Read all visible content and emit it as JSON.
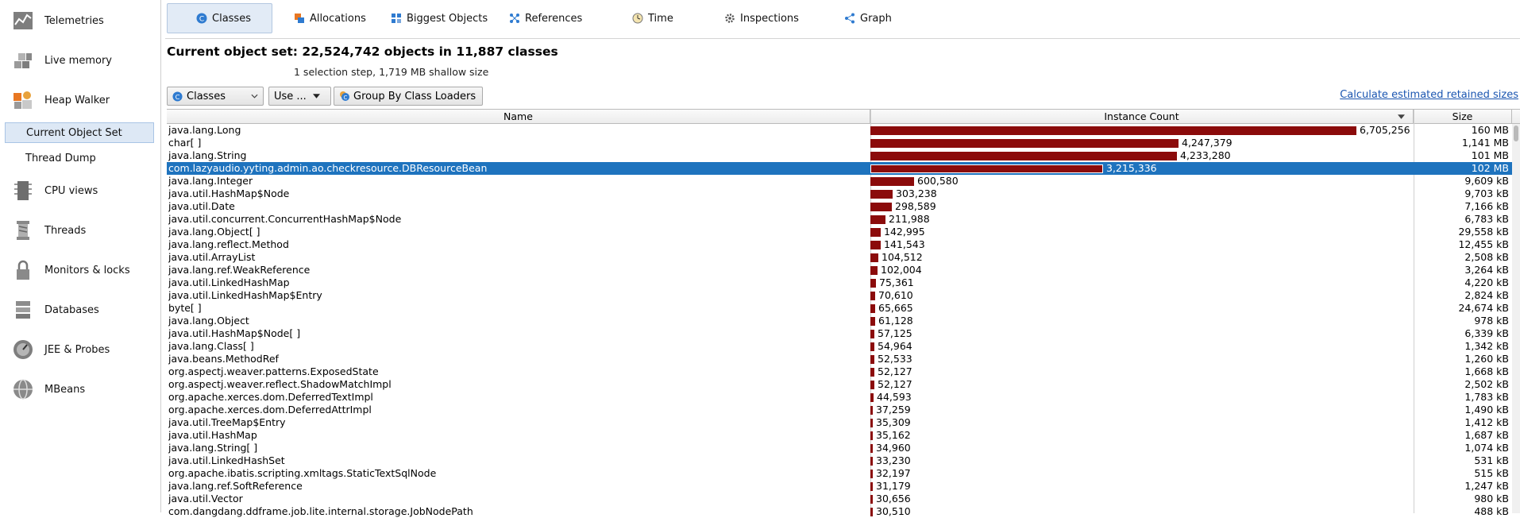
{
  "sidebar": {
    "items": [
      {
        "label": "Telemetries",
        "icon": "telemetries-icon"
      },
      {
        "label": "Live memory",
        "icon": "live-memory-icon"
      },
      {
        "label": "Heap Walker",
        "icon": "heap-walker-icon"
      },
      {
        "label": "CPU views",
        "icon": "cpu-views-icon"
      },
      {
        "label": "Threads",
        "icon": "threads-icon"
      },
      {
        "label": "Monitors & locks",
        "icon": "lock-icon"
      },
      {
        "label": "Databases",
        "icon": "database-icon"
      },
      {
        "label": "JEE & Probes",
        "icon": "gauge-icon"
      },
      {
        "label": "MBeans",
        "icon": "globe-icon"
      }
    ],
    "subitems": [
      {
        "label": "Current Object Set",
        "selected": true
      },
      {
        "label": "Thread Dump",
        "selected": false
      }
    ]
  },
  "tabs": [
    {
      "label": "Classes",
      "icon": "classes-icon",
      "active": true
    },
    {
      "label": "Allocations",
      "icon": "allocations-icon",
      "active": false
    },
    {
      "label": "Biggest Objects",
      "icon": "biggest-objects-icon",
      "active": false
    },
    {
      "label": "References",
      "icon": "references-icon",
      "active": false
    },
    {
      "label": "Time",
      "icon": "clock-icon",
      "active": false
    },
    {
      "label": "Inspections",
      "icon": "gear-icon",
      "active": false
    },
    {
      "label": "Graph",
      "icon": "graph-icon",
      "active": false
    }
  ],
  "header": {
    "title": "Current object set:  22,524,742 objects in 11,887 classes",
    "subtitle": "1 selection step, 1,719 MB shallow size"
  },
  "toolbar": {
    "view_select": "Classes",
    "use_button": "Use ...",
    "group_button": "Group By Class Loaders",
    "retained_link": "Calculate estimated retained sizes"
  },
  "table": {
    "columns": [
      "Name",
      "Instance Count",
      "Size"
    ],
    "sort_column": "Instance Count",
    "max_count": 6705256,
    "rows": [
      {
        "name": "java.lang.Long",
        "count": 6705256,
        "count_label": "6,705,256",
        "size": "160 MB"
      },
      {
        "name": "char[ ]",
        "count": 4247379,
        "count_label": "4,247,379",
        "size": "1,141 MB"
      },
      {
        "name": "java.lang.String",
        "count": 4233280,
        "count_label": "4,233,280",
        "size": "101 MB"
      },
      {
        "name": "com.lazyaudio.yyting.admin.ao.checkresource.DBResourceBean",
        "count": 3215336,
        "count_label": "3,215,336",
        "size": "102 MB",
        "selected": true
      },
      {
        "name": "java.lang.Integer",
        "count": 600580,
        "count_label": "600,580",
        "size": "9,609 kB"
      },
      {
        "name": "java.util.HashMap$Node",
        "count": 303238,
        "count_label": "303,238",
        "size": "9,703 kB"
      },
      {
        "name": "java.util.Date",
        "count": 298589,
        "count_label": "298,589",
        "size": "7,166 kB"
      },
      {
        "name": "java.util.concurrent.ConcurrentHashMap$Node",
        "count": 211988,
        "count_label": "211,988",
        "size": "6,783 kB"
      },
      {
        "name": "java.lang.Object[ ]",
        "count": 142995,
        "count_label": "142,995",
        "size": "29,558 kB"
      },
      {
        "name": "java.lang.reflect.Method",
        "count": 141543,
        "count_label": "141,543",
        "size": "12,455 kB"
      },
      {
        "name": "java.util.ArrayList",
        "count": 104512,
        "count_label": "104,512",
        "size": "2,508 kB"
      },
      {
        "name": "java.lang.ref.WeakReference",
        "count": 102004,
        "count_label": "102,004",
        "size": "3,264 kB"
      },
      {
        "name": "java.util.LinkedHashMap",
        "count": 75361,
        "count_label": "75,361",
        "size": "4,220 kB"
      },
      {
        "name": "java.util.LinkedHashMap$Entry",
        "count": 70610,
        "count_label": "70,610",
        "size": "2,824 kB"
      },
      {
        "name": "byte[ ]",
        "count": 65665,
        "count_label": "65,665",
        "size": "24,674 kB"
      },
      {
        "name": "java.lang.Object",
        "count": 61128,
        "count_label": "61,128",
        "size": "978 kB"
      },
      {
        "name": "java.util.HashMap$Node[ ]",
        "count": 57125,
        "count_label": "57,125",
        "size": "6,339 kB"
      },
      {
        "name": "java.lang.Class[ ]",
        "count": 54964,
        "count_label": "54,964",
        "size": "1,342 kB"
      },
      {
        "name": "java.beans.MethodRef",
        "count": 52533,
        "count_label": "52,533",
        "size": "1,260 kB"
      },
      {
        "name": "org.aspectj.weaver.patterns.ExposedState",
        "count": 52127,
        "count_label": "52,127",
        "size": "1,668 kB"
      },
      {
        "name": "org.aspectj.weaver.reflect.ShadowMatchImpl",
        "count": 52127,
        "count_label": "52,127",
        "size": "2,502 kB"
      },
      {
        "name": "org.apache.xerces.dom.DeferredTextImpl",
        "count": 44593,
        "count_label": "44,593",
        "size": "1,783 kB"
      },
      {
        "name": "org.apache.xerces.dom.DeferredAttrImpl",
        "count": 37259,
        "count_label": "37,259",
        "size": "1,490 kB"
      },
      {
        "name": "java.util.TreeMap$Entry",
        "count": 35309,
        "count_label": "35,309",
        "size": "1,412 kB"
      },
      {
        "name": "java.util.HashMap",
        "count": 35162,
        "count_label": "35,162",
        "size": "1,687 kB"
      },
      {
        "name": "java.lang.String[ ]",
        "count": 34960,
        "count_label": "34,960",
        "size": "1,074 kB"
      },
      {
        "name": "java.util.LinkedHashSet",
        "count": 33230,
        "count_label": "33,230",
        "size": "531 kB"
      },
      {
        "name": "org.apache.ibatis.scripting.xmltags.StaticTextSqlNode",
        "count": 32197,
        "count_label": "32,197",
        "size": "515 kB"
      },
      {
        "name": "java.lang.ref.SoftReference",
        "count": 31179,
        "count_label": "31,179",
        "size": "1,247 kB"
      },
      {
        "name": "java.util.Vector",
        "count": 30656,
        "count_label": "30,656",
        "size": "980 kB"
      },
      {
        "name": "com.dangdang.ddframe.job.lite.internal.storage.JobNodePath",
        "count": 30510,
        "count_label": "30,510",
        "size": "488 kB"
      }
    ]
  },
  "colors": {
    "bar": "#8b0b0b",
    "selection": "#1e73be",
    "link": "#1a55b0"
  }
}
